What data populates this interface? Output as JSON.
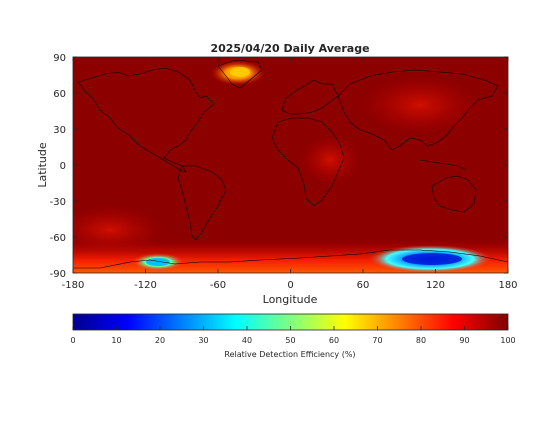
{
  "chart_data": [
    {
      "type": "heatmap",
      "title": "2025/04/20 Daily Average",
      "xlabel": "Longitude",
      "ylabel": "Latitude",
      "xlim": [
        -180,
        180
      ],
      "ylim": [
        -90,
        90
      ],
      "xticks": [
        "-180",
        "-120",
        "-60",
        "0",
        "60",
        "120",
        "180"
      ],
      "yticks": [
        "90",
        "60",
        "30",
        "0",
        "-30",
        "-60",
        "-90"
      ],
      "grid": false,
      "background_value": 100,
      "features": [
        {
          "region": "Greenland",
          "lon": -40,
          "lat": 74,
          "min_value": 75
        },
        {
          "region": "Antarctica (Pacific sector)",
          "lon": -118,
          "lat": -80,
          "min_value": 40
        },
        {
          "region": "Antarctica (East)",
          "lon": 110,
          "lat": -78,
          "min_value": 15
        },
        {
          "region": "Antarctica (coast band)",
          "lon": 0,
          "lat": -84,
          "min_value": 85
        }
      ]
    },
    {
      "type": "heatmap",
      "xlabel": "Relative Detection Efficiency (%)",
      "range": [
        0,
        100
      ],
      "ticks": [
        "0",
        "10",
        "20",
        "30",
        "40",
        "50",
        "60",
        "70",
        "80",
        "90",
        "100"
      ],
      "colormap": "jet"
    }
  ],
  "colors": {
    "background_map": "#8c0000",
    "text": "#262626",
    "coast": "#000000"
  }
}
